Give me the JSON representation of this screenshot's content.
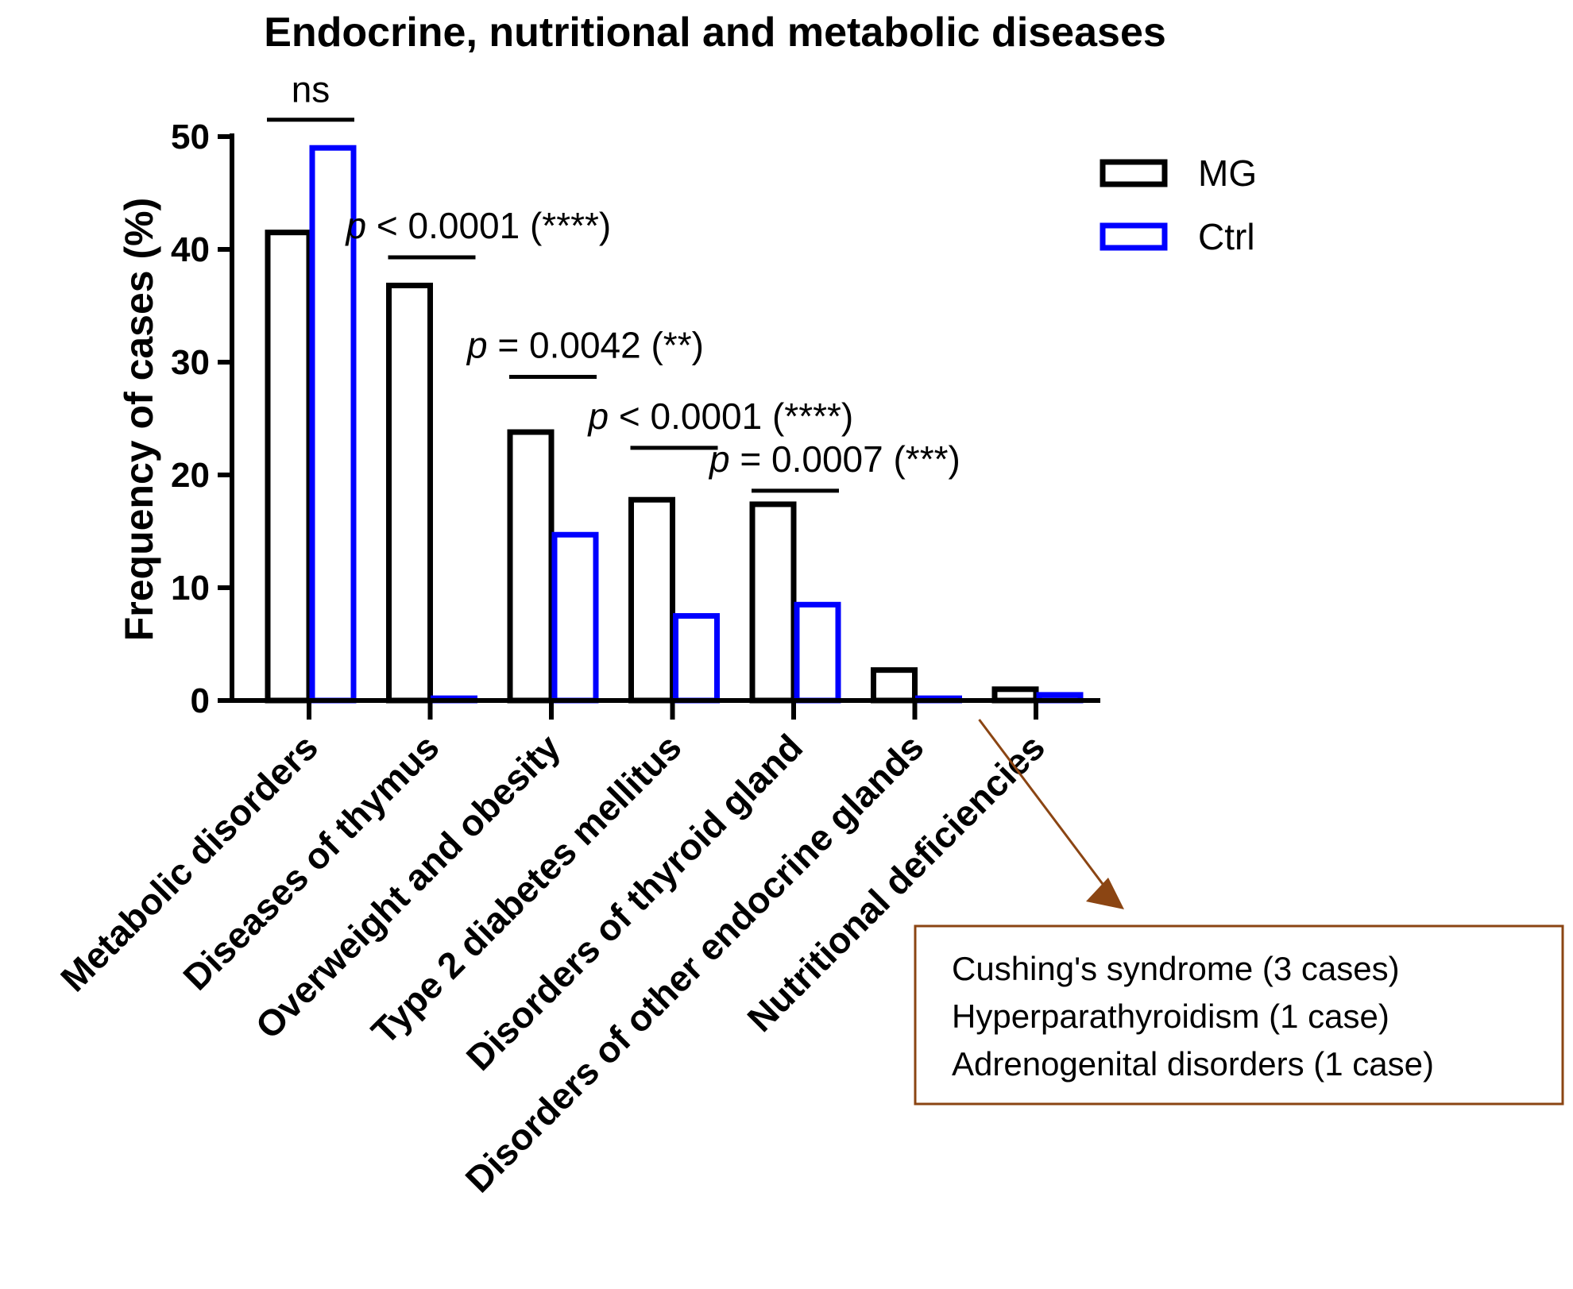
{
  "chart_data": {
    "type": "bar",
    "title": "Endocrine, nutritional and metabolic diseases",
    "xlabel": "",
    "ylabel": "Frequency of cases (%)",
    "ylim": [
      0,
      50
    ],
    "yticks": [
      "0",
      "10",
      "20",
      "30",
      "40",
      "50"
    ],
    "categories": [
      "Metabolic disorders",
      "Diseases of thymus",
      "Overweight and obesity",
      "Type 2 diabetes mellitus",
      "Disorders of thyroid gland",
      "Disorders of other endocrine glands",
      "Nutritional deficiencies"
    ],
    "series": [
      {
        "name": "MG",
        "color": "#000000",
        "values": [
          41.5,
          36.8,
          23.8,
          17.8,
          17.4,
          2.7,
          1.0
        ]
      },
      {
        "name": "Ctrl",
        "color": "#0000ff",
        "values": [
          49.0,
          0.2,
          14.7,
          7.5,
          8.5,
          0.2,
          0.5
        ]
      }
    ],
    "annotations": [
      {
        "category_index": 0,
        "prefix": "",
        "text": "ns",
        "bracket_y": 51.5
      },
      {
        "category_index": 1,
        "prefix": "p",
        "text": " < 0.0001 (****)",
        "bracket_y": 39.3
      },
      {
        "category_index": 2,
        "prefix": "p",
        "text": " = 0.0042 (**)",
        "bracket_y": 28.7
      },
      {
        "category_index": 3,
        "prefix": "p",
        "text": " < 0.0001 (****)",
        "bracket_y": 22.4
      },
      {
        "category_index": 4,
        "prefix": "p",
        "text": " = 0.0007 (***)",
        "bracket_y": 18.6
      }
    ],
    "legend": {
      "position": "top-right",
      "items": [
        {
          "label": "MG",
          "color": "#000000"
        },
        {
          "label": "Ctrl",
          "color": "#0000ff"
        }
      ]
    },
    "callout": {
      "points_to_category_index": 5,
      "color": "#8b4513",
      "lines": [
        "Cushing's syndrome (3 cases)",
        "Hyperparathyroidism (1 case)",
        "Adrenogenital disorders (1 case)"
      ]
    }
  }
}
